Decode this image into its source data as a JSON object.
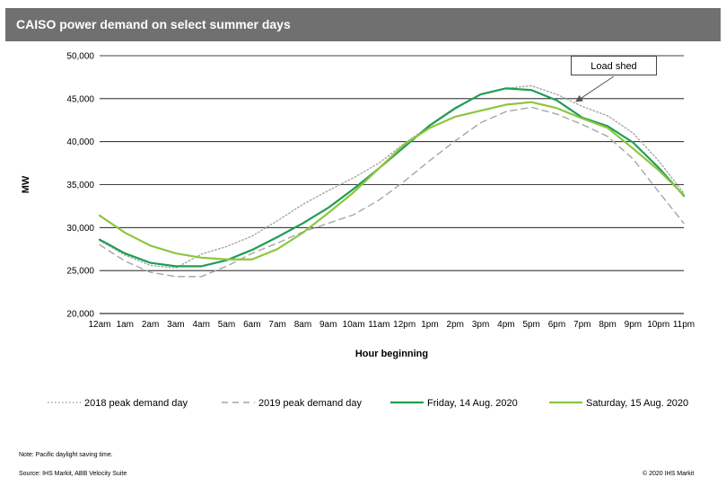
{
  "header": {
    "title": "CAISO power demand on select summer days"
  },
  "chart_data": {
    "type": "line",
    "title": "CAISO power demand on select summer days",
    "xlabel": "Hour beginning",
    "ylabel": "MW",
    "ylim": [
      20000,
      50000
    ],
    "yticks": [
      "20,000",
      "25,000",
      "30,000",
      "35,000",
      "40,000",
      "45,000",
      "50,000"
    ],
    "categories": [
      "12am",
      "1am",
      "2am",
      "3am",
      "4am",
      "5am",
      "6am",
      "7am",
      "8am",
      "9am",
      "10am",
      "11am",
      "12pm",
      "1pm",
      "2pm",
      "3pm",
      "4pm",
      "5pm",
      "6pm",
      "7pm",
      "8pm",
      "9pm",
      "10pm",
      "11pm"
    ],
    "grid": "horizontal",
    "legend_position": "bottom",
    "series": [
      {
        "name": "2018 peak demand day",
        "color": "#a6a6a6",
        "style": "dotted",
        "values": [
          28500,
          26800,
          25600,
          25300,
          26900,
          27800,
          29000,
          30800,
          32700,
          34300,
          35800,
          37500,
          39800,
          41800,
          43800,
          45500,
          46200,
          46500,
          45500,
          44100,
          43000,
          41000,
          37800,
          34000
        ]
      },
      {
        "name": "2019 peak demand day",
        "color": "#a6a6a6",
        "style": "dashed",
        "values": [
          28000,
          26100,
          24800,
          24300,
          24300,
          25500,
          27000,
          28200,
          29500,
          30500,
          31500,
          33200,
          35400,
          37800,
          40100,
          42200,
          43500,
          44000,
          43200,
          42000,
          40600,
          38000,
          34200,
          30500
        ]
      },
      {
        "name": "Friday, 14 Aug. 2020",
        "color": "#1e9e52",
        "style": "solid",
        "values": [
          28600,
          27000,
          25900,
          25500,
          25500,
          26200,
          27400,
          28900,
          30500,
          32300,
          34500,
          36900,
          39400,
          41900,
          43900,
          45500,
          46200,
          46000,
          44800,
          42800,
          41800,
          39900,
          37000,
          33700
        ]
      },
      {
        "name": "Saturday, 15 Aug. 2020",
        "color": "#8dc63f",
        "style": "solid",
        "values": [
          31400,
          29400,
          27900,
          27000,
          26500,
          26300,
          26300,
          27500,
          29400,
          31700,
          34100,
          36900,
          39700,
          41600,
          42900,
          43600,
          44300,
          44600,
          43900,
          42700,
          41600,
          39200,
          36700,
          33800
        ]
      }
    ],
    "annotations": [
      {
        "text": "Load shed",
        "target_series": "2018 peak demand day",
        "target_x": "7pm"
      }
    ]
  },
  "footer": {
    "note": "Note: Pacific daylight saving time.",
    "source": "Source: IHS Markit, ABB Velocity Suite",
    "copyright": "© 2020 IHS Markit"
  }
}
